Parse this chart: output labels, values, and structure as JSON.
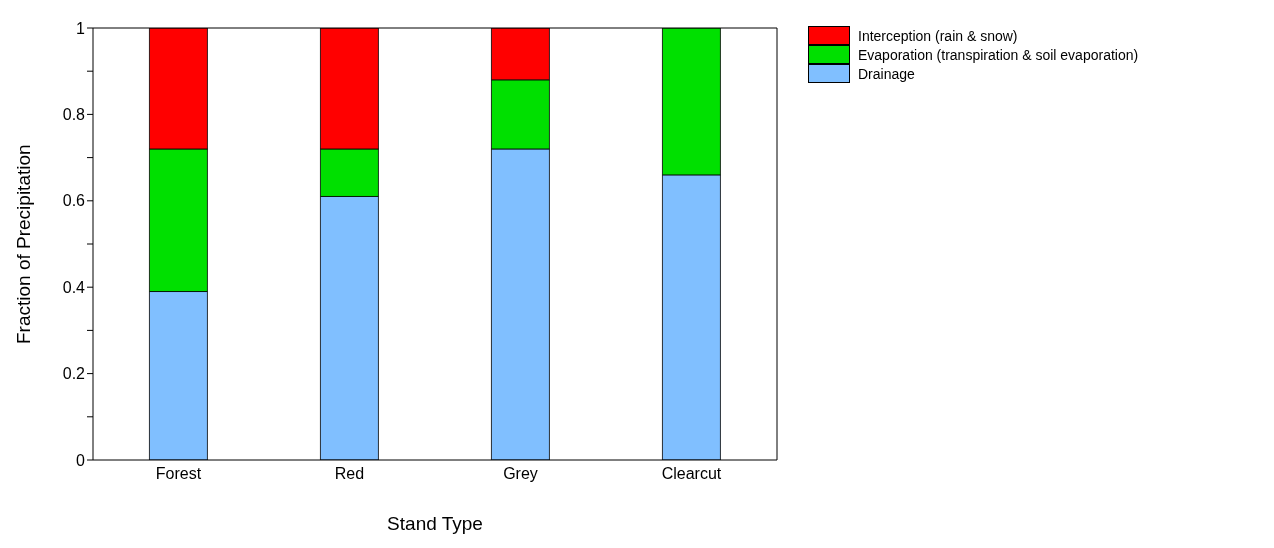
{
  "chart_data": {
    "type": "bar",
    "stacked": true,
    "xlabel": "Stand Type",
    "ylabel": "Fraction of Precipitation",
    "categories": [
      "Forest",
      "Red",
      "Grey",
      "Clearcut"
    ],
    "series": [
      {
        "name": "Drainage",
        "color": "#80bfff",
        "values": [
          0.39,
          0.61,
          0.72,
          0.66
        ]
      },
      {
        "name": "Evaporation (transpiration & soil evaporation)",
        "color": "#00e000",
        "values": [
          0.33,
          0.11,
          0.16,
          0.34
        ]
      },
      {
        "name": "Interception (rain & snow)",
        "color": "#ff0000",
        "values": [
          0.28,
          0.28,
          0.12,
          0
        ]
      }
    ],
    "ylim": [
      0,
      1
    ],
    "yticks": [
      0,
      {
        "value": 0.1,
        "label": null
      },
      {
        "value": 0.2,
        "label": "0.2"
      },
      {
        "value": 0.3,
        "label": null
      },
      {
        "value": 0.4,
        "label": "0.4"
      },
      {
        "value": 0.5,
        "label": null
      },
      {
        "value": 0.6,
        "label": "0.6"
      },
      {
        "value": 0.7,
        "label": null
      },
      {
        "value": 0.8,
        "label": "0.8"
      },
      {
        "value": 0.9,
        "label": null
      },
      1
    ],
    "legend": "top right"
  }
}
